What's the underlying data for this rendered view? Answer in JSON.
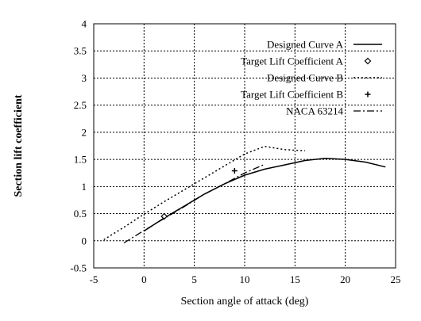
{
  "chart_data": {
    "type": "line",
    "title": "",
    "xlabel": "Section angle of attack (deg)",
    "ylabel": "Section lift coefficient",
    "xlim": [
      -5,
      25
    ],
    "ylim": [
      -0.5,
      4
    ],
    "xticks": [
      -5,
      0,
      5,
      10,
      15,
      20,
      25
    ],
    "yticks": [
      -0.5,
      0,
      0.5,
      1,
      1.5,
      2,
      2.5,
      3,
      3.5,
      4
    ],
    "xtick_labels": [
      "-5",
      "0",
      "5",
      "10",
      "15",
      "20",
      "25"
    ],
    "ytick_labels": [
      "-0.5",
      "0",
      "0.5",
      "1",
      "1.5",
      "2",
      "2.5",
      "3",
      "3.5",
      "4"
    ],
    "grid": true,
    "legend_position": "top-right",
    "series": [
      {
        "name": "Designed Curve A",
        "style": "solid",
        "color": "#000000",
        "x": [
          0,
          2,
          4,
          6,
          8,
          10,
          12,
          14,
          16,
          18,
          20,
          22,
          24
        ],
        "y": [
          0.18,
          0.42,
          0.64,
          0.86,
          1.05,
          1.21,
          1.32,
          1.4,
          1.48,
          1.52,
          1.5,
          1.45,
          1.36
        ]
      },
      {
        "name": "Target Lift Coefficient A",
        "style": "marker-diamond",
        "color": "#000000",
        "x": [
          2
        ],
        "y": [
          0.45
        ]
      },
      {
        "name": "Designed Curve B",
        "style": "dotted",
        "color": "#000000",
        "x": [
          -4,
          -2,
          0,
          2,
          4,
          6,
          8,
          10,
          12,
          14,
          16
        ],
        "y": [
          0.02,
          0.25,
          0.49,
          0.72,
          0.94,
          1.16,
          1.38,
          1.6,
          1.74,
          1.68,
          1.66
        ]
      },
      {
        "name": "Target Lift Coefficient B",
        "style": "marker-plus",
        "color": "#000000",
        "x": [
          9
        ],
        "y": [
          1.29
        ]
      },
      {
        "name": "NACA 63214",
        "style": "dashdot",
        "color": "#000000",
        "x": [
          -2,
          0,
          2,
          4,
          6,
          8,
          10,
          12
        ],
        "y": [
          -0.04,
          0.19,
          0.41,
          0.63,
          0.86,
          1.05,
          1.25,
          1.41
        ]
      }
    ]
  }
}
